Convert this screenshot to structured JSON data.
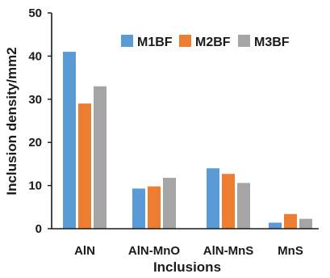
{
  "chart_data": {
    "type": "bar",
    "title": "",
    "xlabel": "Inclusions",
    "ylabel": "Inclusion density/mm2",
    "categories": [
      "AlN",
      "AlN-MnO",
      "AlN-MnS",
      "MnS"
    ],
    "ylim": [
      0,
      50
    ],
    "yticks": [
      0,
      10,
      20,
      30,
      40,
      50
    ],
    "grid": false,
    "legend_position": "top-right",
    "series": [
      {
        "name": "M1BF",
        "color": "#5b9bd5",
        "values": [
          41,
          9.3,
          14,
          1.4
        ]
      },
      {
        "name": "M2BF",
        "color": "#ed7d31",
        "values": [
          29,
          9.8,
          12.7,
          3.4
        ]
      },
      {
        "name": "M3BF",
        "color": "#a5a5a5",
        "values": [
          33,
          11.8,
          10.6,
          2.3
        ]
      }
    ]
  }
}
